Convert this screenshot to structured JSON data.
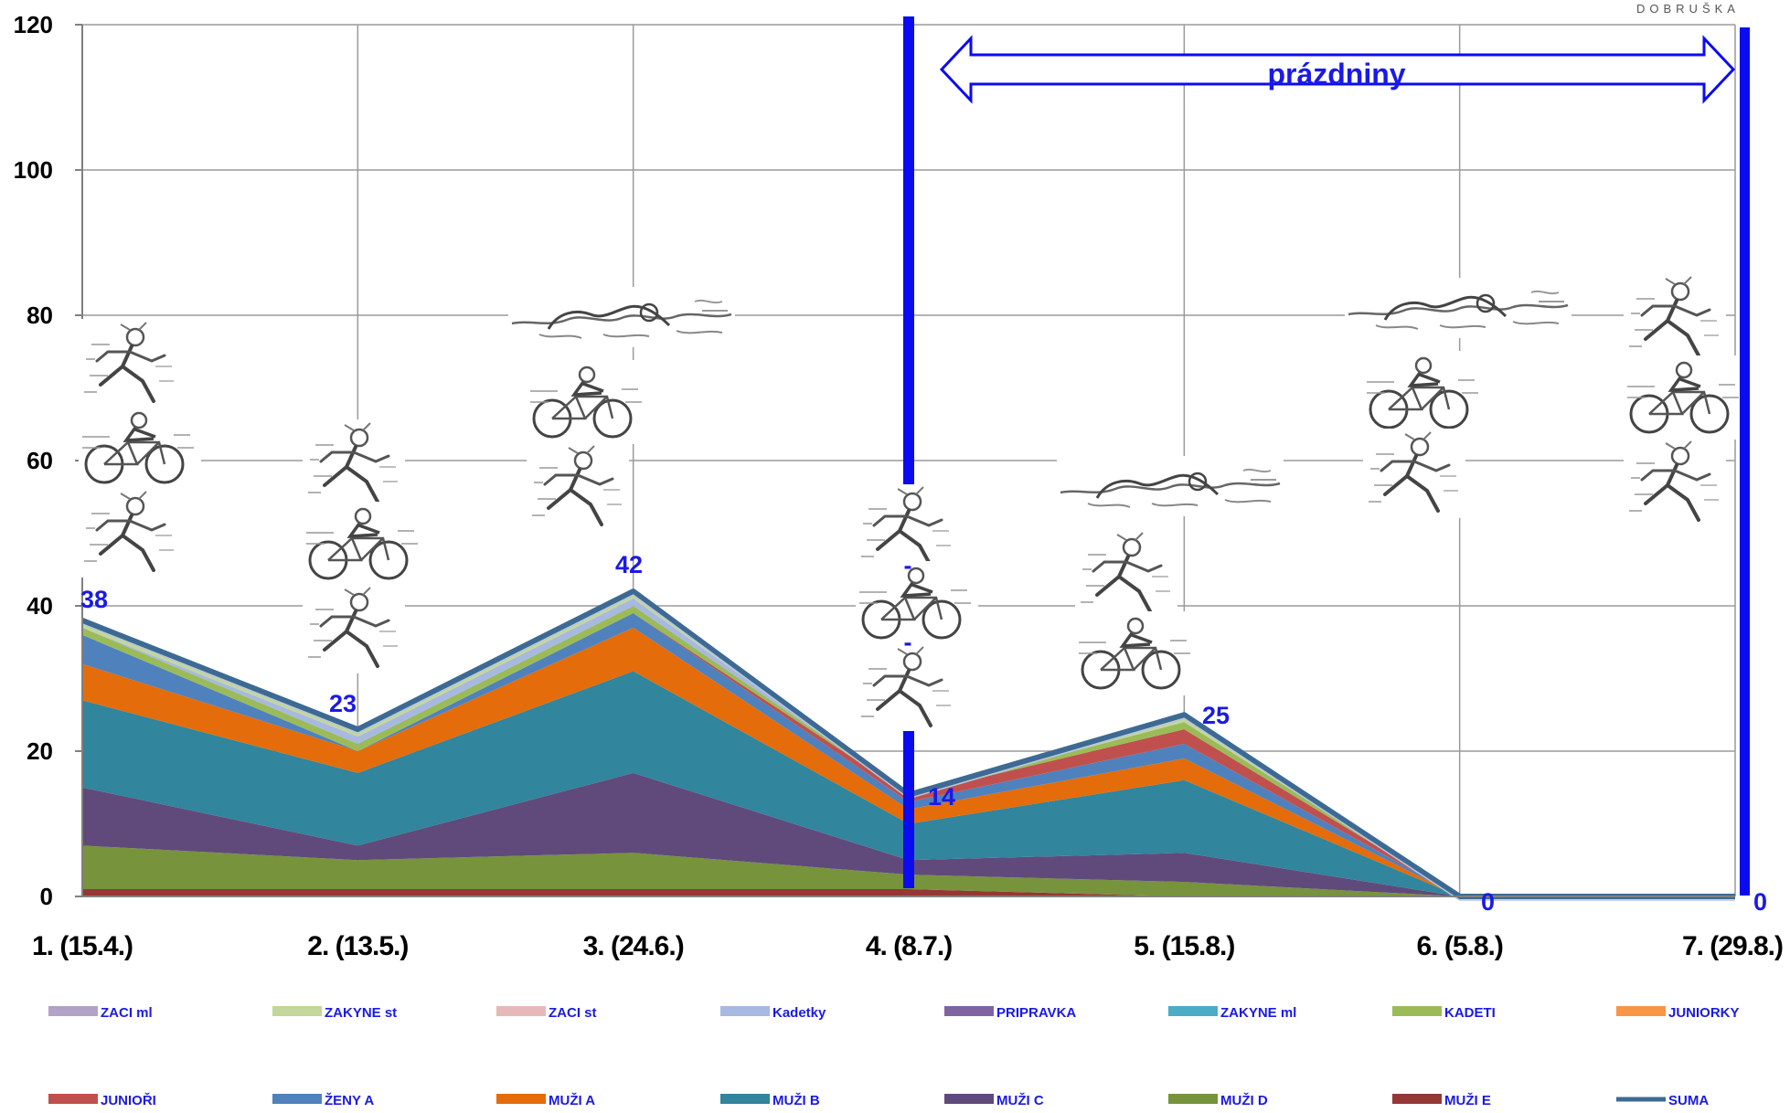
{
  "logo": {
    "text": "DOBRUŠKA"
  },
  "chart_data": {
    "type": "area",
    "stacked": true,
    "categories": [
      "1. (15.4.)",
      "2. (13.5.)",
      "3. (24.6.)",
      "4. (8.7.)",
      "5. (15.8.)",
      "6. (5.8.)",
      "7. (29.8.)"
    ],
    "ylim": [
      0,
      120
    ],
    "yticks": [
      0,
      20,
      40,
      60,
      80,
      100,
      120
    ],
    "grid": true,
    "legend_position": "bottom",
    "series": [
      {
        "name": "MUŽI E",
        "color": "#953735",
        "values": [
          1,
          1,
          1,
          1,
          0,
          0,
          0
        ]
      },
      {
        "name": "MUŽI D",
        "color": "#77933c",
        "values": [
          6,
          4,
          5,
          2,
          2,
          0,
          0
        ]
      },
      {
        "name": "MUŽI C",
        "color": "#604a7b",
        "values": [
          8,
          2,
          11,
          2,
          4,
          0,
          0
        ]
      },
      {
        "name": "MUŽI B",
        "color": "#31859c",
        "values": [
          12,
          10,
          14,
          5,
          10,
          0,
          0
        ]
      },
      {
        "name": "MUŽI A",
        "color": "#e46c0a",
        "values": [
          5,
          3,
          6,
          2,
          3,
          0,
          0
        ]
      },
      {
        "name": "ŽENY A",
        "color": "#4f81bd",
        "values": [
          4,
          0,
          2,
          1,
          2,
          0,
          0
        ]
      },
      {
        "name": "JUNIOŘI",
        "color": "#c0504d",
        "values": [
          0,
          0,
          0,
          1,
          2,
          0,
          0
        ]
      },
      {
        "name": "JUNIORKY",
        "color": "#f79646",
        "values": [
          0,
          0,
          0,
          0,
          0,
          0,
          0
        ]
      },
      {
        "name": "KADETI",
        "color": "#9bbb59",
        "values": [
          1,
          1,
          1,
          0,
          1,
          0,
          0
        ]
      },
      {
        "name": "ZAKYNE ml",
        "color": "#4bacc6",
        "values": [
          0,
          0,
          0,
          0,
          0,
          0,
          0
        ]
      },
      {
        "name": "PRIPRAVKA",
        "color": "#8064a2",
        "values": [
          0,
          0,
          0,
          0,
          0,
          0,
          0
        ]
      },
      {
        "name": "Kadetky",
        "color": "#a7b9e0",
        "values": [
          0,
          1,
          1,
          0,
          0,
          0,
          0
        ]
      },
      {
        "name": "ZACI st",
        "color": "#e6b9b8",
        "values": [
          0,
          0,
          0,
          0,
          0,
          0,
          0
        ]
      },
      {
        "name": "ZAKYNE st",
        "color": "#c3d69b",
        "values": [
          1,
          1,
          1,
          0,
          1,
          0,
          0
        ]
      },
      {
        "name": "ZACI ml",
        "color": "#b3a2c7",
        "values": [
          0,
          0,
          0,
          0,
          0,
          0,
          0
        ]
      }
    ],
    "total": {
      "name": "SUMA",
      "color": "#3d6a94",
      "values": [
        38,
        23,
        42,
        14,
        25,
        0,
        0
      ]
    },
    "data_labels": [
      "38",
      "23",
      "42",
      "14",
      "25",
      "0",
      "0"
    ],
    "legend_order": [
      "ZACI ml",
      "ZAKYNE st",
      "ZACI st",
      "Kadetky",
      "PRIPRAVKA",
      "ZAKYNE ml",
      "KADETI",
      "JUNIORKY",
      "JUNIOŘI",
      "ŽENY A",
      "MUŽI A",
      "MUŽI B",
      "MUŽI C",
      "MUŽI D",
      "MUŽI E",
      "SUMA"
    ],
    "annotations": {
      "banner_text": "prázdniny",
      "dash_marks": [
        "-",
        "-"
      ],
      "marker_color": "#0b0bf0",
      "event_icons": [
        [
          "running-icon",
          "cycling-icon",
          "running-icon"
        ],
        [
          "running-icon",
          "cycling-icon",
          "running-icon"
        ],
        [
          "swimming-icon",
          "cycling-icon",
          "running-icon"
        ],
        [
          "running-icon",
          "cycling-icon",
          "running-icon"
        ],
        [
          "swimming-icon",
          "running-icon",
          "cycling-icon"
        ],
        [
          "swimming-icon",
          "cycling-icon",
          "running-icon"
        ],
        [
          "running-icon",
          "cycling-icon",
          "running-icon"
        ]
      ]
    }
  }
}
